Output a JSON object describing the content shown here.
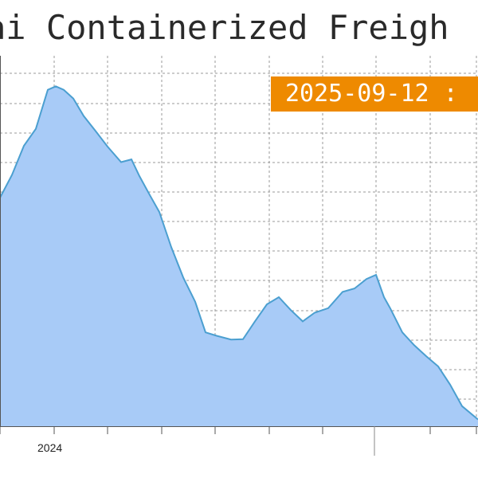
{
  "header": {
    "title": "ai Containerized Freigh"
  },
  "tooltip": {
    "date_value": "2025-09-12 :"
  },
  "colors": {
    "area_fill": "#a8cbf7",
    "line": "#4b9fd0",
    "grid": "#9a9a9a",
    "badge": "#ee8a00"
  },
  "chart_data": {
    "type": "area",
    "title": "",
    "xlabel": "",
    "ylabel": "",
    "x_tick_labels": [
      "2024"
    ],
    "grid": true,
    "legend": "none",
    "x_range": [
      0,
      600
    ],
    "y_range": [
      0,
      100
    ],
    "series": [
      {
        "values_note_free": true,
        "x": [
          0,
          15,
          30,
          45,
          60,
          70,
          80,
          92,
          105,
          120,
          135,
          152,
          165,
          175,
          188,
          200,
          215,
          230,
          245,
          258,
          272,
          290,
          305,
          320,
          335,
          350,
          365,
          380,
          395,
          412,
          430,
          445,
          460,
          472,
          482,
          490,
          505,
          520,
          535,
          550,
          565,
          580,
          600
        ],
        "y": [
          60.4,
          66.4,
          74.1,
          78.6,
          88.9,
          89.8,
          88.9,
          86.6,
          82.0,
          78.0,
          73.9,
          69.8,
          70.5,
          66.1,
          61.1,
          56.6,
          47.3,
          39.3,
          32.9,
          24.8,
          23.9,
          22.9,
          23.0,
          27.7,
          32.2,
          34.1,
          30.7,
          27.7,
          30.0,
          31.2,
          35.5,
          36.4,
          38.9,
          40.0,
          34.1,
          31.1,
          24.8,
          21.4,
          18.5,
          15.8,
          11.0,
          5.3,
          1.8
        ]
      }
    ]
  }
}
